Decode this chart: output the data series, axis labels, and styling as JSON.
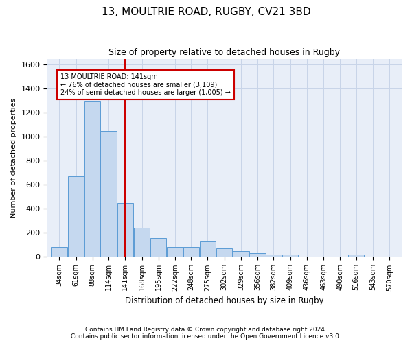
{
  "title": "13, MOULTRIE ROAD, RUGBY, CV21 3BD",
  "subtitle": "Size of property relative to detached houses in Rugby",
  "xlabel": "Distribution of detached houses by size in Rugby",
  "ylabel": "Number of detached properties",
  "annotation_line1": "13 MOULTRIE ROAD: 141sqm",
  "annotation_line2": "← 76% of detached houses are smaller (3,109)",
  "annotation_line3": "24% of semi-detached houses are larger (1,005) →",
  "footnote1": "Contains HM Land Registry data © Crown copyright and database right 2024.",
  "footnote2": "Contains public sector information licensed under the Open Government Licence v3.0.",
  "property_size": 141,
  "bins": [
    34,
    61,
    88,
    114,
    141,
    168,
    195,
    222,
    248,
    275,
    302,
    329,
    356,
    382,
    409,
    436,
    463,
    490,
    516,
    543,
    570
  ],
  "counts": [
    80,
    670,
    1300,
    1050,
    450,
    240,
    155,
    80,
    80,
    130,
    70,
    50,
    30,
    20,
    20,
    5,
    5,
    0,
    20,
    0
  ],
  "bar_color": "#c5d8ef",
  "bar_edge_color": "#5b9bd5",
  "property_line_color": "#cc0000",
  "annotation_box_color": "#cc0000",
  "annotation_bg": "#ffffff",
  "grid_color": "#c8d4e8",
  "bg_color": "#e8eef8",
  "ylim": [
    0,
    1650
  ],
  "yticks": [
    0,
    200,
    400,
    600,
    800,
    1000,
    1200,
    1400,
    1600
  ]
}
